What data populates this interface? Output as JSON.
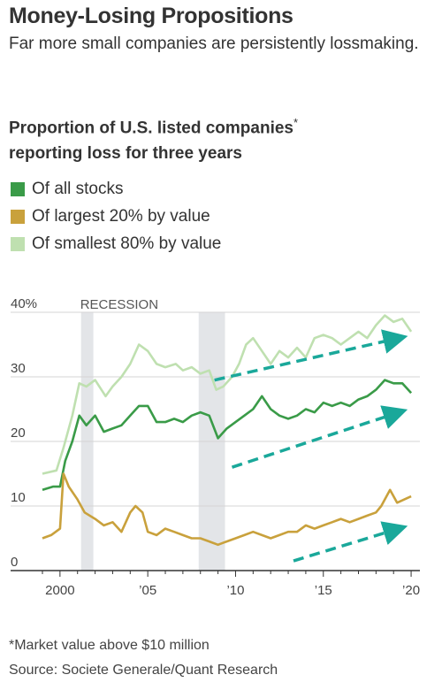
{
  "header": {
    "title": "Money-Losing Propositions",
    "subtitle": "Far more small companies are persistently lossmaking."
  },
  "chart_title": {
    "text": "Proportion of U.S. listed companies",
    "marker": "*",
    "line2": "reporting loss for three years"
  },
  "legend": [
    {
      "label": "Of all stocks",
      "color": "#3a9b48"
    },
    {
      "label": "Of largest 20% by value",
      "color": "#c9a13c"
    },
    {
      "label": "Of smallest 80% by value",
      "color": "#bfe0b0"
    }
  ],
  "footnote": "*Market value above $10 million",
  "source": "Source: Societe Generale/Quant Research",
  "chart_data": {
    "type": "line",
    "x_ticks": [
      2000,
      2005,
      2010,
      2015,
      2020
    ],
    "x_tick_labels": [
      "2000",
      "’05",
      "’10",
      "’15",
      "’20"
    ],
    "y_ticks": [
      0,
      10,
      20,
      30,
      40
    ],
    "y_tick_labels": [
      "0",
      "10",
      "20",
      "30",
      "40%"
    ],
    "xlim": [
      1999,
      2020.5
    ],
    "ylim": [
      0,
      40
    ],
    "grid": true,
    "recession_label": "RECESSION",
    "recessions": [
      [
        2001.2,
        2001.9
      ],
      [
        2007.9,
        2009.4
      ]
    ],
    "series": [
      {
        "name": "Of smallest 80% by value",
        "color": "#bfe0b0",
        "points": [
          [
            1999,
            15
          ],
          [
            1999.8,
            15.5
          ],
          [
            2000.2,
            19
          ],
          [
            2000.7,
            24
          ],
          [
            2001.1,
            29
          ],
          [
            2001.5,
            28.5
          ],
          [
            2002,
            29.5
          ],
          [
            2002.6,
            27
          ],
          [
            2003,
            28.5
          ],
          [
            2003.5,
            30
          ],
          [
            2004,
            32
          ],
          [
            2004.5,
            35
          ],
          [
            2005,
            34
          ],
          [
            2005.5,
            32
          ],
          [
            2006,
            31.5
          ],
          [
            2006.6,
            32
          ],
          [
            2007,
            31
          ],
          [
            2007.5,
            31.5
          ],
          [
            2008,
            30.5
          ],
          [
            2008.5,
            31
          ],
          [
            2008.9,
            28
          ],
          [
            2009.3,
            28.5
          ],
          [
            2009.8,
            30
          ],
          [
            2010.2,
            32
          ],
          [
            2010.6,
            35
          ],
          [
            2011,
            36
          ],
          [
            2011.5,
            34
          ],
          [
            2012,
            32
          ],
          [
            2012.5,
            34
          ],
          [
            2013,
            33
          ],
          [
            2013.5,
            34.5
          ],
          [
            2014,
            33
          ],
          [
            2014.5,
            36
          ],
          [
            2015,
            36.5
          ],
          [
            2015.5,
            36
          ],
          [
            2016,
            35
          ],
          [
            2016.5,
            36
          ],
          [
            2017,
            37
          ],
          [
            2017.5,
            36
          ],
          [
            2018,
            38
          ],
          [
            2018.5,
            39.5
          ],
          [
            2019,
            38.5
          ],
          [
            2019.5,
            39
          ],
          [
            2020,
            37
          ]
        ]
      },
      {
        "name": "Of all stocks",
        "color": "#3a9b48",
        "points": [
          [
            1999,
            12.5
          ],
          [
            1999.6,
            13
          ],
          [
            2000,
            13
          ],
          [
            2000.3,
            17
          ],
          [
            2000.7,
            20
          ],
          [
            2001.1,
            24
          ],
          [
            2001.5,
            22.5
          ],
          [
            2002,
            24
          ],
          [
            2002.5,
            21.5
          ],
          [
            2003,
            22
          ],
          [
            2003.5,
            22.5
          ],
          [
            2004,
            24
          ],
          [
            2004.5,
            25.5
          ],
          [
            2005,
            25.5
          ],
          [
            2005.5,
            23
          ],
          [
            2006,
            23
          ],
          [
            2006.5,
            23.5
          ],
          [
            2007,
            23
          ],
          [
            2007.5,
            24
          ],
          [
            2008,
            24.5
          ],
          [
            2008.5,
            24
          ],
          [
            2009,
            20.5
          ],
          [
            2009.5,
            22
          ],
          [
            2010,
            23
          ],
          [
            2010.5,
            24
          ],
          [
            2011,
            25
          ],
          [
            2011.5,
            27
          ],
          [
            2012,
            25
          ],
          [
            2012.5,
            24
          ],
          [
            2013,
            23.5
          ],
          [
            2013.5,
            24
          ],
          [
            2014,
            25
          ],
          [
            2014.5,
            24.5
          ],
          [
            2015,
            26
          ],
          [
            2015.5,
            25.5
          ],
          [
            2016,
            26
          ],
          [
            2016.5,
            25.5
          ],
          [
            2017,
            26.5
          ],
          [
            2017.5,
            27
          ],
          [
            2018,
            28
          ],
          [
            2018.5,
            29.5
          ],
          [
            2019,
            29
          ],
          [
            2019.5,
            29
          ],
          [
            2020,
            27.5
          ]
        ]
      },
      {
        "name": "Of largest 20% by value",
        "color": "#c9a13c",
        "points": [
          [
            1999,
            5
          ],
          [
            1999.5,
            5.5
          ],
          [
            2000,
            6.5
          ],
          [
            2000.2,
            15
          ],
          [
            2000.5,
            13
          ],
          [
            2001,
            11
          ],
          [
            2001.4,
            9
          ],
          [
            2002,
            8
          ],
          [
            2002.5,
            7
          ],
          [
            2003,
            7.5
          ],
          [
            2003.5,
            6
          ],
          [
            2004,
            9
          ],
          [
            2004.3,
            10
          ],
          [
            2004.7,
            9
          ],
          [
            2005,
            6
          ],
          [
            2005.5,
            5.5
          ],
          [
            2006,
            6.5
          ],
          [
            2006.5,
            6
          ],
          [
            2007,
            5.5
          ],
          [
            2007.5,
            5
          ],
          [
            2008,
            5
          ],
          [
            2008.5,
            4.5
          ],
          [
            2009,
            4
          ],
          [
            2009.5,
            4.5
          ],
          [
            2010,
            5
          ],
          [
            2010.5,
            5.5
          ],
          [
            2011,
            6
          ],
          [
            2011.5,
            5.5
          ],
          [
            2012,
            5
          ],
          [
            2012.5,
            5.5
          ],
          [
            2013,
            6
          ],
          [
            2013.5,
            6
          ],
          [
            2014,
            7
          ],
          [
            2014.5,
            6.5
          ],
          [
            2015,
            7
          ],
          [
            2015.5,
            7.5
          ],
          [
            2016,
            8
          ],
          [
            2016.5,
            7.5
          ],
          [
            2017,
            8
          ],
          [
            2017.5,
            8.5
          ],
          [
            2018,
            9
          ],
          [
            2018.3,
            10
          ],
          [
            2018.8,
            12.5
          ],
          [
            2019.2,
            10.5
          ],
          [
            2019.6,
            11
          ],
          [
            2020,
            11.5
          ]
        ]
      }
    ],
    "trend_arrows_count": 3
  }
}
